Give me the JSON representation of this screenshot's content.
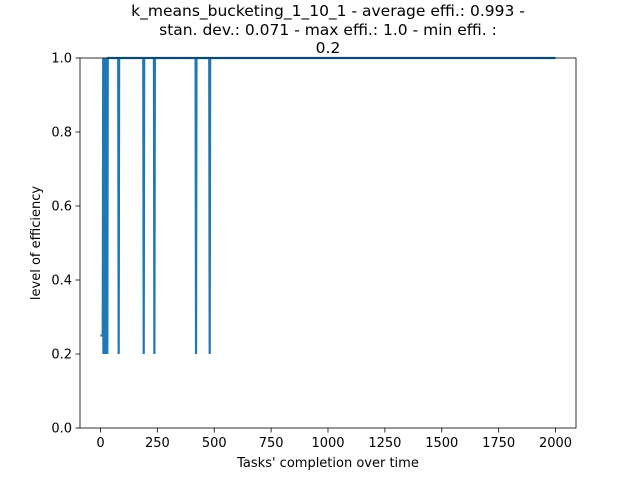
{
  "chart_data": {
    "type": "line",
    "title_lines": [
      "k_means_bucketing_1_10_1 - average effi.: 0.993 -",
      "stan. dev.: 0.071 - max effi.: 1.0 - min effi. :",
      "0.2"
    ],
    "xlabel": "Tasks' completion over time",
    "ylabel": "level of efficiency",
    "xlim": [
      -90,
      2090
    ],
    "ylim": [
      0.0,
      1.0
    ],
    "xticks": [
      0,
      250,
      500,
      750,
      1000,
      1250,
      1500,
      1750,
      2000
    ],
    "yticks": [
      0.0,
      0.2,
      0.4,
      0.6,
      0.8,
      1.0
    ],
    "ytick_labels": [
      "0.0",
      "0.2",
      "0.4",
      "0.6",
      "0.8",
      "1.0"
    ],
    "grid": false,
    "series": [
      {
        "color": "#1f77b4",
        "x": [
          0,
          10,
          12,
          13,
          18,
          20,
          22,
          23,
          28,
          30,
          32,
          33,
          78,
          80,
          82,
          188,
          190,
          192,
          235,
          237,
          239,
          418,
          420,
          422,
          478,
          480,
          482,
          2000
        ],
        "y": [
          0.25,
          0.25,
          1.0,
          0.2,
          1.0,
          0.2,
          1.0,
          0.2,
          1.0,
          0.2,
          1.0,
          1.0,
          1.0,
          0.2,
          1.0,
          1.0,
          0.2,
          1.0,
          1.0,
          0.2,
          1.0,
          1.0,
          0.2,
          1.0,
          1.0,
          0.2,
          1.0,
          1.0
        ]
      }
    ]
  }
}
